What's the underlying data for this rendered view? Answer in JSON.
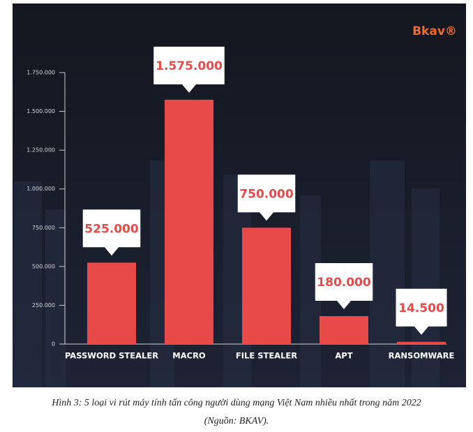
{
  "chart_data": {
    "type": "bar",
    "logo": "Bkav®",
    "categories": [
      "PASSWORD STEALER",
      "MACRO",
      "FILE STEALER",
      "APT",
      "RANSOMWARE"
    ],
    "values": [
      525000,
      1575000,
      750000,
      180000,
      14500
    ],
    "value_labels": [
      "525.000",
      "1.575.000",
      "750.000",
      "180.000",
      "14.500"
    ],
    "color": "#e84a4a",
    "ylim": [
      0,
      1750000
    ],
    "yticks": [
      0,
      {
        "value": 250000,
        "label": "250.000"
      },
      {
        "value": 500000,
        "label": "500.000"
      },
      {
        "value": 750000,
        "label": "750.000"
      },
      {
        "value": 1000000,
        "label": "1.000.000"
      },
      {
        "value": 1250000,
        "label": "1.250.000"
      },
      {
        "value": 1500000,
        "label": "1.500.000"
      },
      {
        "value": 1750000,
        "label": "1.750.000"
      }
    ],
    "caption": "Hình 3: 5 loại vi rút máy tính tấn công người dùng mạng Việt Nam nhiều nhất trong năm 2022",
    "source": "(Nguồn: BKAV)."
  }
}
